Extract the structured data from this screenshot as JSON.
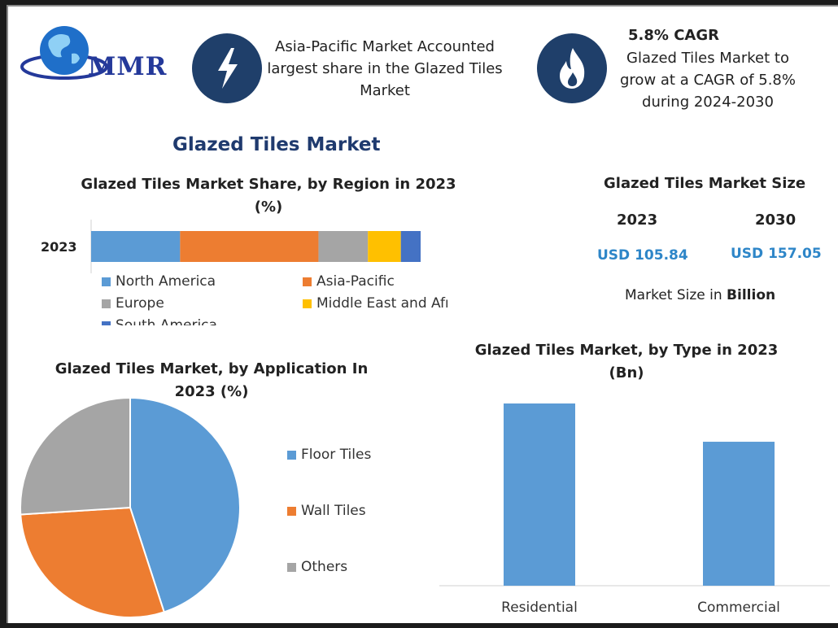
{
  "header": {
    "logo_text": "MMR",
    "card1_text": [
      "Asia-Pacific Market Accounted",
      "largest share in the Glazed Tiles",
      "Market"
    ],
    "card1_icon": "lightning-icon",
    "card2_title": "5.8% CAGR",
    "card2_text": [
      "Glazed Tiles Market to",
      "grow at a CAGR of 5.8%",
      "during 2024-2030"
    ],
    "card2_icon": "flame-icon"
  },
  "main_title": "Glazed Tiles Market",
  "region_chart": {
    "title_line1": "Glazed Tiles Market Share, by Region in 2023",
    "title_line2": "(%)"
  },
  "market_size": {
    "title": "Glazed Tiles Market Size",
    "years": [
      "2023",
      "2030"
    ],
    "values": [
      "USD 105.84",
      "USD 157.05"
    ],
    "note_prefix": "Market Size in ",
    "note_bold": "Billion"
  },
  "application_chart": {
    "title_line1": "Glazed Tiles Market, by Application In",
    "title_line2": "2023 (%)"
  },
  "type_chart": {
    "title_line1": "Glazed Tiles Market, by Type in 2023",
    "title_line2": "(Bn)"
  },
  "colors": {
    "blue": "#5b9bd5",
    "orange": "#ed7d31",
    "gray": "#a5a5a5",
    "yellow": "#ffc000",
    "darkblue": "#4472c4",
    "icon_bg": "#1f3f6a",
    "title_navy": "#1f3a6e",
    "value_blue": "#2e86c8"
  },
  "chart_data": [
    {
      "type": "bar",
      "orientation": "horizontal-stacked",
      "categories": [
        "2023"
      ],
      "series": [
        {
          "name": "North America",
          "values": [
            27
          ]
        },
        {
          "name": "Asia-Pacific",
          "values": [
            42
          ]
        },
        {
          "name": "Europe",
          "values": [
            15
          ]
        },
        {
          "name": "Middle East and Africa",
          "values": [
            10
          ]
        },
        {
          "name": "South America",
          "values": [
            6
          ]
        }
      ],
      "grid": false,
      "legend": "bottom"
    },
    {
      "type": "pie",
      "labels": [
        "Floor Tiles",
        "Wall Tiles",
        "Others"
      ],
      "values": [
        45,
        29,
        26
      ],
      "legend": "right"
    },
    {
      "type": "bar",
      "categories": [
        "Residential",
        "Commercial"
      ],
      "values": [
        100,
        79
      ],
      "grid": false
    }
  ]
}
